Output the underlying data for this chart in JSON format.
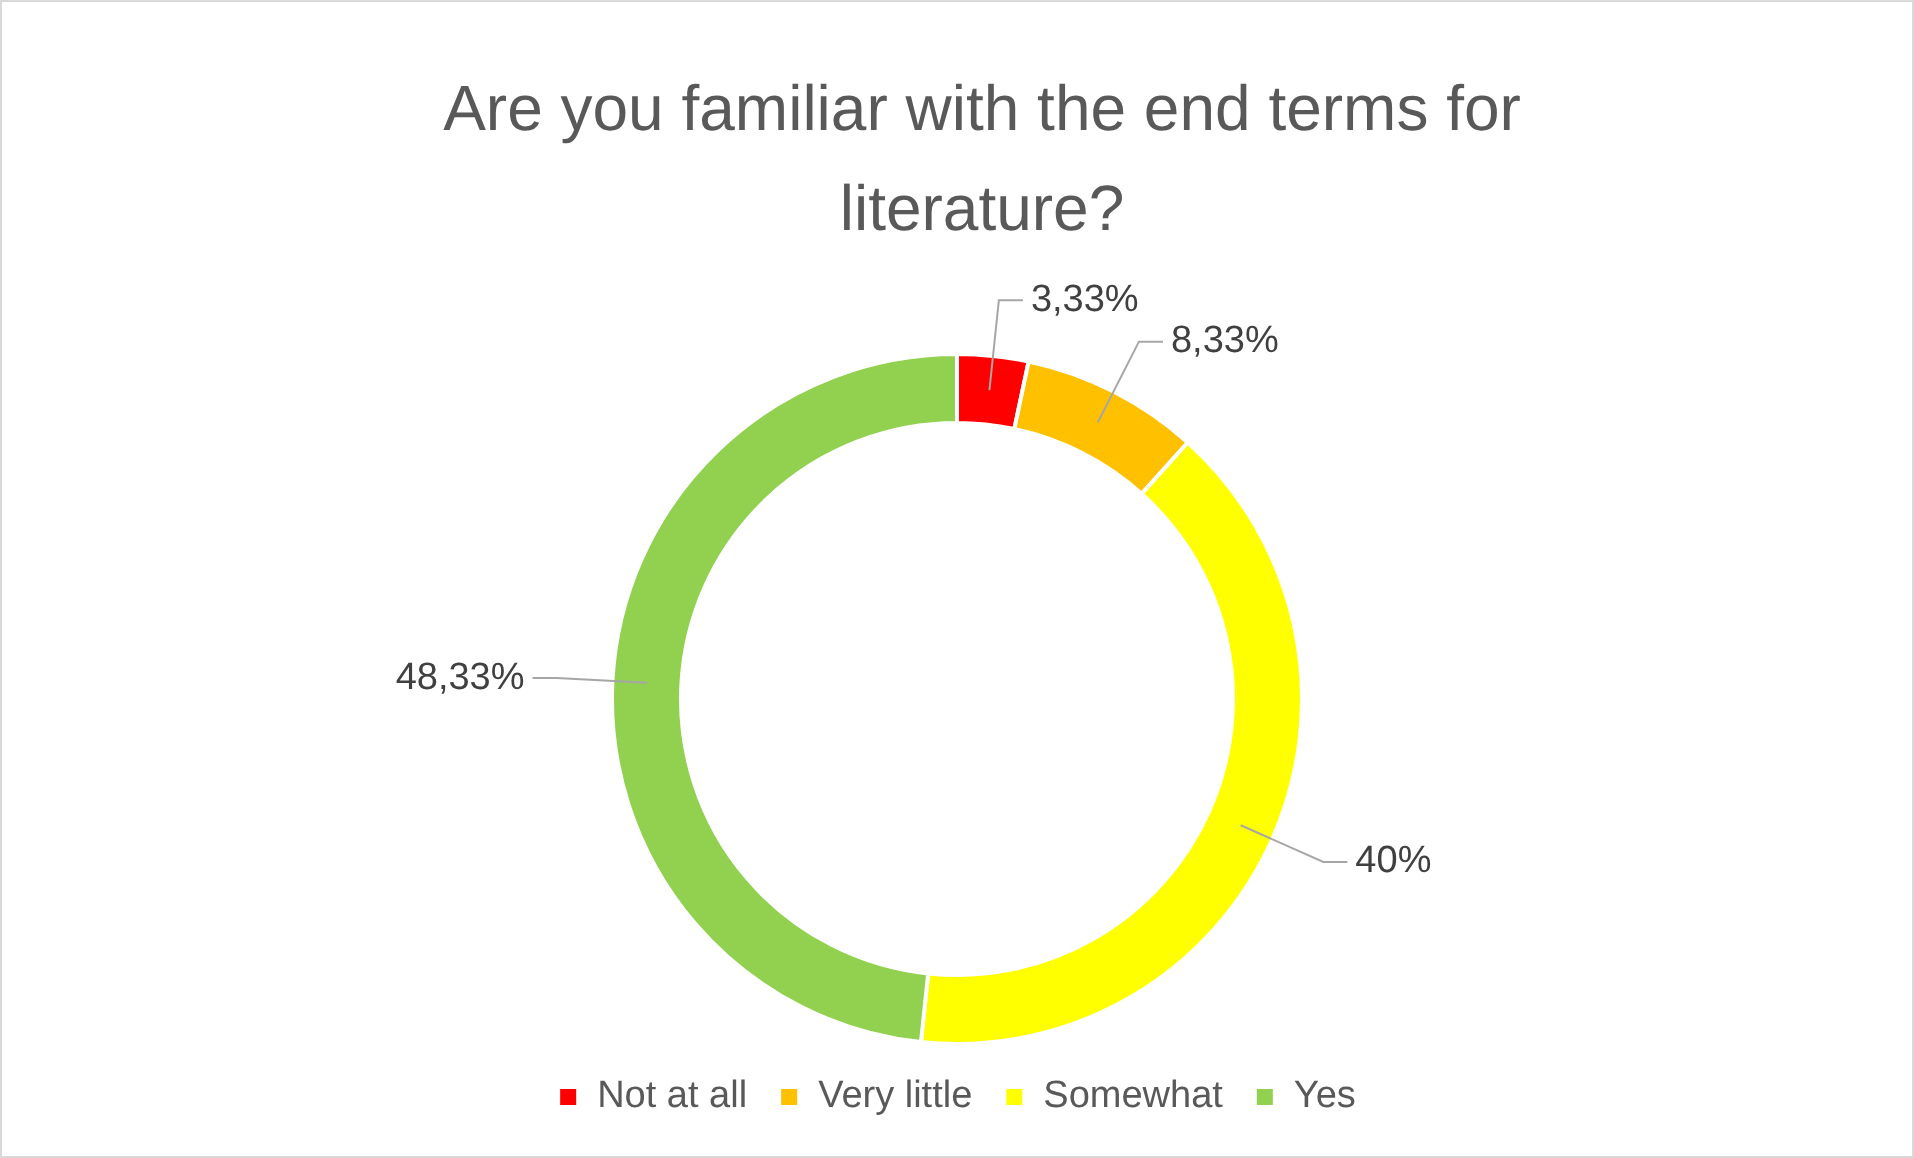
{
  "chart_data": {
    "type": "donut",
    "title": "Are you familiar with the end terms for literature?",
    "categories": [
      "Not at all",
      "Very little",
      "Somewhat",
      "Yes"
    ],
    "values": [
      3.33,
      8.33,
      40,
      48.33
    ],
    "colors": [
      "#ff0000",
      "#ffc000",
      "#ffff00",
      "#92d050"
    ],
    "value_labels": [
      "3,33%",
      "8,33%",
      "40%",
      "48,33%"
    ],
    "legend": "bottom"
  }
}
